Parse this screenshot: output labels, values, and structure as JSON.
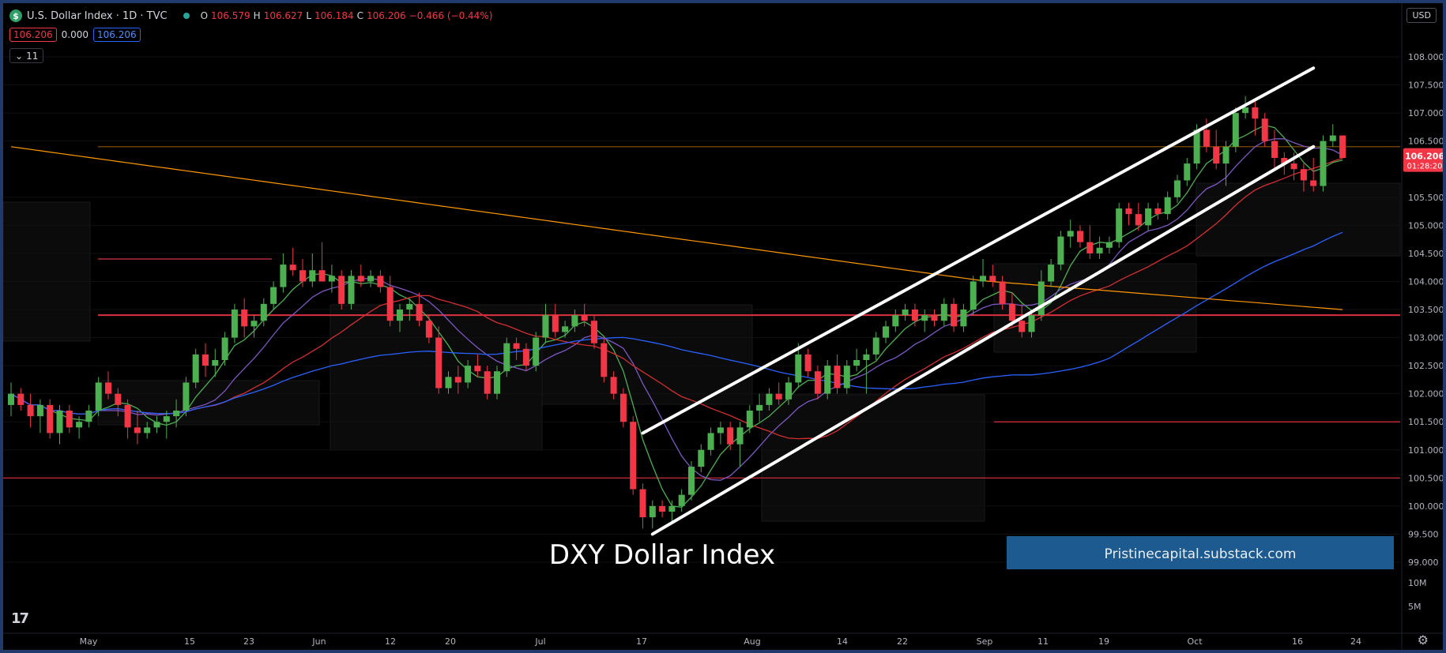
{
  "header": {
    "symbol_icon": "$",
    "title": "U.S. Dollar Index · 1D · TVC",
    "status_dot": "market-open-dot",
    "ohlc": {
      "o_label": "O",
      "o": "106.579",
      "h_label": "H",
      "h": "106.627",
      "l_label": "L",
      "l": "106.184",
      "c_label": "C",
      "c": "106.206",
      "change": "−0.466 (−0.44%)"
    },
    "values": {
      "v1": "106.206",
      "v2": "0.000",
      "v3": "106.206"
    },
    "collapse_label": "11",
    "currency": "USD"
  },
  "colors": {
    "up": "#4caf50",
    "down": "#f23645",
    "sma_green": "#4caf50",
    "sma_purple": "#7e57c2",
    "sma_red": "#d32f2f",
    "sma_blue": "#2962ff",
    "sma_orange": "#ff9800",
    "channel": "#ffffff",
    "banner": "#1c5a8f"
  },
  "annotations": {
    "title_text": "DXY Dollar Index",
    "banner_text": "Pristinecapital.substack.com"
  },
  "price_label": {
    "price": "106.206",
    "countdown": "01:28:20"
  },
  "chart_data": {
    "type": "candlestick",
    "title": "U.S. Dollar Index · 1D · TVC",
    "y_ticks": [
      "108.000",
      "107.500",
      "107.000",
      "106.500",
      "105.500",
      "105.000",
      "104.500",
      "104.000",
      "103.500",
      "103.000",
      "102.500",
      "102.000",
      "101.500",
      "101.000",
      "100.500",
      "100.000",
      "99.500",
      "99.000"
    ],
    "volume_ticks": [
      "10M",
      "5M"
    ],
    "x_ticks": [
      "May",
      "15",
      "23",
      "Jun",
      "12",
      "20",
      "Jul",
      "17",
      "Aug",
      "14",
      "22",
      "Sep",
      "11",
      "19",
      "Oct",
      "16",
      "24"
    ],
    "ylim": [
      99.0,
      108.0
    ],
    "candles": [
      {
        "o": 101.8,
        "h": 102.2,
        "l": 101.6,
        "c": 102.0
      },
      {
        "o": 102.0,
        "h": 102.1,
        "l": 101.7,
        "c": 101.8
      },
      {
        "o": 101.8,
        "h": 102.0,
        "l": 101.4,
        "c": 101.6
      },
      {
        "o": 101.6,
        "h": 101.9,
        "l": 101.3,
        "c": 101.8
      },
      {
        "o": 101.8,
        "h": 101.9,
        "l": 101.2,
        "c": 101.3
      },
      {
        "o": 101.3,
        "h": 101.8,
        "l": 101.1,
        "c": 101.7
      },
      {
        "o": 101.7,
        "h": 101.8,
        "l": 101.3,
        "c": 101.4
      },
      {
        "o": 101.4,
        "h": 101.6,
        "l": 101.2,
        "c": 101.5
      },
      {
        "o": 101.5,
        "h": 101.8,
        "l": 101.4,
        "c": 101.7
      },
      {
        "o": 101.7,
        "h": 102.3,
        "l": 101.6,
        "c": 102.2
      },
      {
        "o": 102.2,
        "h": 102.4,
        "l": 101.9,
        "c": 102.0
      },
      {
        "o": 102.0,
        "h": 102.1,
        "l": 101.6,
        "c": 101.8
      },
      {
        "o": 101.8,
        "h": 101.9,
        "l": 101.2,
        "c": 101.4
      },
      {
        "o": 101.4,
        "h": 101.7,
        "l": 101.1,
        "c": 101.3
      },
      {
        "o": 101.3,
        "h": 101.5,
        "l": 101.2,
        "c": 101.4
      },
      {
        "o": 101.4,
        "h": 101.6,
        "l": 101.3,
        "c": 101.5
      },
      {
        "o": 101.5,
        "h": 101.7,
        "l": 101.2,
        "c": 101.6
      },
      {
        "o": 101.6,
        "h": 101.9,
        "l": 101.4,
        "c": 101.7
      },
      {
        "o": 101.7,
        "h": 102.3,
        "l": 101.6,
        "c": 102.2
      },
      {
        "o": 102.2,
        "h": 102.8,
        "l": 102.1,
        "c": 102.7
      },
      {
        "o": 102.7,
        "h": 102.9,
        "l": 102.3,
        "c": 102.5
      },
      {
        "o": 102.5,
        "h": 102.8,
        "l": 102.3,
        "c": 102.6
      },
      {
        "o": 102.6,
        "h": 103.1,
        "l": 102.5,
        "c": 103.0
      },
      {
        "o": 103.0,
        "h": 103.6,
        "l": 102.9,
        "c": 103.5
      },
      {
        "o": 103.5,
        "h": 103.7,
        "l": 103.0,
        "c": 103.2
      },
      {
        "o": 103.2,
        "h": 103.4,
        "l": 103.0,
        "c": 103.3
      },
      {
        "o": 103.3,
        "h": 103.7,
        "l": 103.2,
        "c": 103.6
      },
      {
        "o": 103.6,
        "h": 104.0,
        "l": 103.5,
        "c": 103.9
      },
      {
        "o": 103.9,
        "h": 104.5,
        "l": 103.8,
        "c": 104.3
      },
      {
        "o": 104.3,
        "h": 104.6,
        "l": 104.1,
        "c": 104.2
      },
      {
        "o": 104.2,
        "h": 104.4,
        "l": 103.9,
        "c": 104.0
      },
      {
        "o": 104.0,
        "h": 104.5,
        "l": 103.9,
        "c": 104.2
      },
      {
        "o": 104.2,
        "h": 104.7,
        "l": 104.0,
        "c": 104.0
      },
      {
        "o": 104.0,
        "h": 104.3,
        "l": 103.8,
        "c": 104.1
      },
      {
        "o": 104.1,
        "h": 104.2,
        "l": 103.5,
        "c": 103.6
      },
      {
        "o": 103.6,
        "h": 104.2,
        "l": 103.5,
        "c": 104.1
      },
      {
        "o": 104.1,
        "h": 104.3,
        "l": 103.9,
        "c": 104.0
      },
      {
        "o": 104.0,
        "h": 104.2,
        "l": 103.9,
        "c": 104.1
      },
      {
        "o": 104.1,
        "h": 104.2,
        "l": 103.8,
        "c": 103.9
      },
      {
        "o": 103.9,
        "h": 104.1,
        "l": 103.2,
        "c": 103.3
      },
      {
        "o": 103.3,
        "h": 103.6,
        "l": 103.1,
        "c": 103.5
      },
      {
        "o": 103.5,
        "h": 103.7,
        "l": 103.3,
        "c": 103.6
      },
      {
        "o": 103.6,
        "h": 103.8,
        "l": 103.2,
        "c": 103.3
      },
      {
        "o": 103.3,
        "h": 103.4,
        "l": 102.9,
        "c": 103.0
      },
      {
        "o": 103.0,
        "h": 103.2,
        "l": 102.0,
        "c": 102.1
      },
      {
        "o": 102.1,
        "h": 102.4,
        "l": 102.0,
        "c": 102.3
      },
      {
        "o": 102.3,
        "h": 102.5,
        "l": 102.0,
        "c": 102.2
      },
      {
        "o": 102.2,
        "h": 102.6,
        "l": 102.1,
        "c": 102.5
      },
      {
        "o": 102.5,
        "h": 102.7,
        "l": 102.3,
        "c": 102.4
      },
      {
        "o": 102.4,
        "h": 102.5,
        "l": 101.9,
        "c": 102.0
      },
      {
        "o": 102.0,
        "h": 102.5,
        "l": 101.9,
        "c": 102.4
      },
      {
        "o": 102.4,
        "h": 103.0,
        "l": 102.3,
        "c": 102.9
      },
      {
        "o": 102.9,
        "h": 103.0,
        "l": 102.6,
        "c": 102.8
      },
      {
        "o": 102.8,
        "h": 102.9,
        "l": 102.4,
        "c": 102.5
      },
      {
        "o": 102.5,
        "h": 103.1,
        "l": 102.4,
        "c": 103.0
      },
      {
        "o": 103.0,
        "h": 103.6,
        "l": 102.9,
        "c": 103.4
      },
      {
        "o": 103.4,
        "h": 103.6,
        "l": 103.0,
        "c": 103.1
      },
      {
        "o": 103.1,
        "h": 103.3,
        "l": 103.0,
        "c": 103.2
      },
      {
        "o": 103.2,
        "h": 103.5,
        "l": 103.1,
        "c": 103.4
      },
      {
        "o": 103.4,
        "h": 103.6,
        "l": 103.2,
        "c": 103.3
      },
      {
        "o": 103.3,
        "h": 103.4,
        "l": 102.8,
        "c": 102.9
      },
      {
        "o": 102.9,
        "h": 103.0,
        "l": 102.2,
        "c": 102.3
      },
      {
        "o": 102.3,
        "h": 102.4,
        "l": 101.9,
        "c": 102.0
      },
      {
        "o": 102.0,
        "h": 102.1,
        "l": 101.4,
        "c": 101.5
      },
      {
        "o": 101.5,
        "h": 101.6,
        "l": 100.2,
        "c": 100.3
      },
      {
        "o": 100.3,
        "h": 100.4,
        "l": 99.6,
        "c": 99.8
      },
      {
        "o": 99.8,
        "h": 100.1,
        "l": 99.6,
        "c": 100.0
      },
      {
        "o": 100.0,
        "h": 100.1,
        "l": 99.8,
        "c": 99.9
      },
      {
        "o": 99.9,
        "h": 100.1,
        "l": 99.7,
        "c": 100.0
      },
      {
        "o": 100.0,
        "h": 100.3,
        "l": 99.9,
        "c": 100.2
      },
      {
        "o": 100.2,
        "h": 100.8,
        "l": 100.1,
        "c": 100.7
      },
      {
        "o": 100.7,
        "h": 101.1,
        "l": 100.6,
        "c": 101.0
      },
      {
        "o": 101.0,
        "h": 101.4,
        "l": 100.9,
        "c": 101.3
      },
      {
        "o": 101.3,
        "h": 101.5,
        "l": 101.1,
        "c": 101.4
      },
      {
        "o": 101.4,
        "h": 101.5,
        "l": 101.0,
        "c": 101.1
      },
      {
        "o": 101.1,
        "h": 101.5,
        "l": 100.7,
        "c": 101.4
      },
      {
        "o": 101.4,
        "h": 101.8,
        "l": 101.3,
        "c": 101.7
      },
      {
        "o": 101.7,
        "h": 102.0,
        "l": 101.5,
        "c": 101.8
      },
      {
        "o": 101.8,
        "h": 102.1,
        "l": 101.7,
        "c": 102.0
      },
      {
        "o": 102.0,
        "h": 102.2,
        "l": 101.8,
        "c": 101.9
      },
      {
        "o": 101.9,
        "h": 102.3,
        "l": 101.8,
        "c": 102.2
      },
      {
        "o": 102.2,
        "h": 102.9,
        "l": 102.1,
        "c": 102.7
      },
      {
        "o": 102.7,
        "h": 102.8,
        "l": 102.3,
        "c": 102.4
      },
      {
        "o": 102.4,
        "h": 102.5,
        "l": 101.9,
        "c": 102.0
      },
      {
        "o": 102.0,
        "h": 102.6,
        "l": 101.9,
        "c": 102.5
      },
      {
        "o": 102.5,
        "h": 102.7,
        "l": 102.0,
        "c": 102.1
      },
      {
        "o": 102.1,
        "h": 102.6,
        "l": 102.0,
        "c": 102.5
      },
      {
        "o": 102.5,
        "h": 102.8,
        "l": 102.4,
        "c": 102.6
      },
      {
        "o": 102.6,
        "h": 102.8,
        "l": 102.0,
        "c": 102.7
      },
      {
        "o": 102.7,
        "h": 103.1,
        "l": 102.6,
        "c": 103.0
      },
      {
        "o": 103.0,
        "h": 103.3,
        "l": 102.9,
        "c": 103.2
      },
      {
        "o": 103.2,
        "h": 103.5,
        "l": 103.1,
        "c": 103.4
      },
      {
        "o": 103.4,
        "h": 103.6,
        "l": 103.3,
        "c": 103.5
      },
      {
        "o": 103.5,
        "h": 103.6,
        "l": 103.2,
        "c": 103.3
      },
      {
        "o": 103.3,
        "h": 103.5,
        "l": 103.1,
        "c": 103.4
      },
      {
        "o": 103.4,
        "h": 103.5,
        "l": 103.2,
        "c": 103.3
      },
      {
        "o": 103.3,
        "h": 103.7,
        "l": 103.2,
        "c": 103.6
      },
      {
        "o": 103.6,
        "h": 103.7,
        "l": 103.1,
        "c": 103.2
      },
      {
        "o": 103.2,
        "h": 103.6,
        "l": 103.1,
        "c": 103.5
      },
      {
        "o": 103.5,
        "h": 104.1,
        "l": 103.4,
        "c": 104.0
      },
      {
        "o": 104.0,
        "h": 104.4,
        "l": 103.9,
        "c": 104.1
      },
      {
        "o": 104.1,
        "h": 104.3,
        "l": 103.9,
        "c": 104.0
      },
      {
        "o": 104.0,
        "h": 104.1,
        "l": 103.5,
        "c": 103.6
      },
      {
        "o": 103.6,
        "h": 103.8,
        "l": 103.2,
        "c": 103.3
      },
      {
        "o": 103.3,
        "h": 103.6,
        "l": 103.0,
        "c": 103.1
      },
      {
        "o": 103.1,
        "h": 103.5,
        "l": 103.0,
        "c": 103.4
      },
      {
        "o": 103.4,
        "h": 104.2,
        "l": 103.3,
        "c": 104.0
      },
      {
        "o": 104.0,
        "h": 104.4,
        "l": 103.9,
        "c": 104.3
      },
      {
        "o": 104.3,
        "h": 104.9,
        "l": 104.2,
        "c": 104.8
      },
      {
        "o": 104.8,
        "h": 105.1,
        "l": 104.6,
        "c": 104.9
      },
      {
        "o": 104.9,
        "h": 105.0,
        "l": 104.6,
        "c": 104.7
      },
      {
        "o": 104.7,
        "h": 105.0,
        "l": 104.4,
        "c": 104.5
      },
      {
        "o": 104.5,
        "h": 104.8,
        "l": 104.4,
        "c": 104.6
      },
      {
        "o": 104.6,
        "h": 104.8,
        "l": 104.5,
        "c": 104.7
      },
      {
        "o": 104.7,
        "h": 105.4,
        "l": 104.6,
        "c": 105.3
      },
      {
        "o": 105.3,
        "h": 105.4,
        "l": 105.0,
        "c": 105.2
      },
      {
        "o": 105.2,
        "h": 105.4,
        "l": 104.9,
        "c": 105.0
      },
      {
        "o": 105.0,
        "h": 105.4,
        "l": 104.9,
        "c": 105.3
      },
      {
        "o": 105.3,
        "h": 105.4,
        "l": 105.1,
        "c": 105.2
      },
      {
        "o": 105.2,
        "h": 105.6,
        "l": 105.1,
        "c": 105.5
      },
      {
        "o": 105.5,
        "h": 105.9,
        "l": 105.4,
        "c": 105.8
      },
      {
        "o": 105.8,
        "h": 106.2,
        "l": 105.7,
        "c": 106.1
      },
      {
        "o": 106.1,
        "h": 106.8,
        "l": 106.0,
        "c": 106.7
      },
      {
        "o": 106.7,
        "h": 106.9,
        "l": 106.3,
        "c": 106.4
      },
      {
        "o": 106.4,
        "h": 106.7,
        "l": 106.0,
        "c": 106.1
      },
      {
        "o": 106.1,
        "h": 106.5,
        "l": 105.7,
        "c": 106.4
      },
      {
        "o": 106.4,
        "h": 107.1,
        "l": 106.3,
        "c": 107.0
      },
      {
        "o": 107.0,
        "h": 107.3,
        "l": 106.9,
        "c": 107.1
      },
      {
        "o": 107.1,
        "h": 107.2,
        "l": 106.6,
        "c": 106.9
      },
      {
        "o": 106.9,
        "h": 107.0,
        "l": 106.4,
        "c": 106.5
      },
      {
        "o": 106.5,
        "h": 106.7,
        "l": 106.0,
        "c": 106.2
      },
      {
        "o": 106.2,
        "h": 106.3,
        "l": 105.9,
        "c": 106.1
      },
      {
        "o": 106.1,
        "h": 106.3,
        "l": 105.8,
        "c": 106.0
      },
      {
        "o": 106.0,
        "h": 106.1,
        "l": 105.6,
        "c": 105.8
      },
      {
        "o": 105.8,
        "h": 106.2,
        "l": 105.6,
        "c": 105.7
      },
      {
        "o": 105.7,
        "h": 106.6,
        "l": 105.6,
        "c": 106.5
      },
      {
        "o": 106.5,
        "h": 106.8,
        "l": 106.4,
        "c": 106.6
      },
      {
        "o": 106.6,
        "h": 106.6,
        "l": 106.2,
        "c": 106.2
      }
    ],
    "h_levels": [
      104.4,
      101.5,
      100.5,
      106.4,
      103.4
    ],
    "channel": {
      "upper": [
        [
          65,
          101.3
        ],
        [
          134,
          107.8
        ]
      ],
      "lower": [
        [
          66,
          99.5
        ],
        [
          134,
          106.4
        ]
      ]
    }
  }
}
